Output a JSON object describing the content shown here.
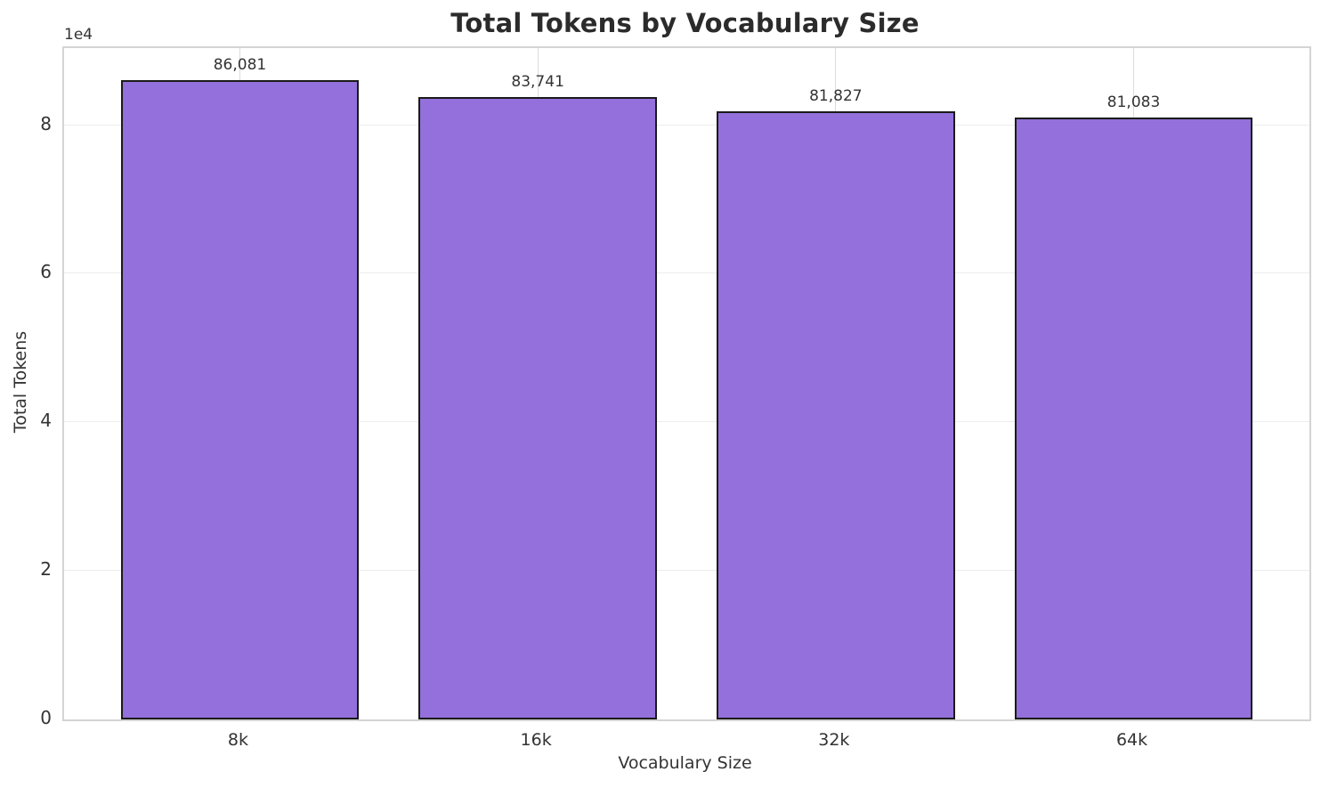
{
  "chart_data": {
    "type": "bar",
    "title": "Total Tokens by Vocabulary Size",
    "xlabel": "Vocabulary Size",
    "ylabel": "Total Tokens",
    "categories": [
      "8k",
      "16k",
      "32k",
      "64k"
    ],
    "values": [
      86081,
      83741,
      81827,
      81083
    ],
    "value_labels": [
      "86,081",
      "83,741",
      "81,827",
      "81,083"
    ],
    "ylim": [
      0,
      90385
    ],
    "yticks": [
      0,
      20000,
      40000,
      60000,
      80000
    ],
    "ytick_labels": [
      "0",
      "2",
      "4",
      "6",
      "8"
    ],
    "y_offset_text": "1e4",
    "grid": true,
    "legend_position": "none",
    "bar_color": "#9370DB",
    "bar_edge_color": "#1a1a1a"
  }
}
